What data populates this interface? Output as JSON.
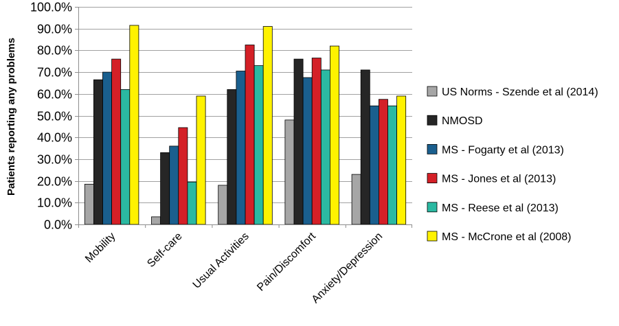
{
  "chart_data": {
    "type": "bar",
    "title": "",
    "xlabel": "",
    "ylabel": "Patients reporting any problems",
    "ylim": [
      0,
      100
    ],
    "ytick_values": [
      0,
      10,
      20,
      30,
      40,
      50,
      60,
      70,
      80,
      90,
      100
    ],
    "ytick_labels": [
      "0.0%",
      "10.0%",
      "20.0%",
      "30.0%",
      "40.0%",
      "50.0%",
      "60.0%",
      "70.0%",
      "80.0%",
      "90.0%",
      "100.0%"
    ],
    "grid": true,
    "legend_position": "right",
    "categories": [
      "Mobility",
      "Self-care",
      "Usual Activities",
      "Pain/Discomfort",
      "Anxiety/Depression"
    ],
    "series": [
      {
        "name": "US Norms - Szende et al (2014)",
        "color": "#a6a6a6",
        "values": [
          18.5,
          3.5,
          18.0,
          48.0,
          23.0
        ]
      },
      {
        "name": "NMOSD",
        "color": "#262626",
        "values": [
          66.5,
          33.0,
          62.0,
          76.0,
          71.0
        ]
      },
      {
        "name": "MS - Fogarty et al (2013)",
        "color": "#1a5f8e",
        "values": [
          70.0,
          36.0,
          70.5,
          67.5,
          54.5
        ]
      },
      {
        "name": "MS - Jones et al (2013)",
        "color": "#d42027",
        "values": [
          76.0,
          44.5,
          82.5,
          76.5,
          57.5
        ]
      },
      {
        "name": "MS - Reese et al (2013)",
        "color": "#2bb9a2",
        "values": [
          62.0,
          19.5,
          73.0,
          71.0,
          54.5
        ]
      },
      {
        "name": "MS - McCrone et al (2008)",
        "color": "#fff200",
        "values": [
          91.5,
          59.0,
          91.0,
          82.0,
          59.0
        ]
      }
    ]
  }
}
